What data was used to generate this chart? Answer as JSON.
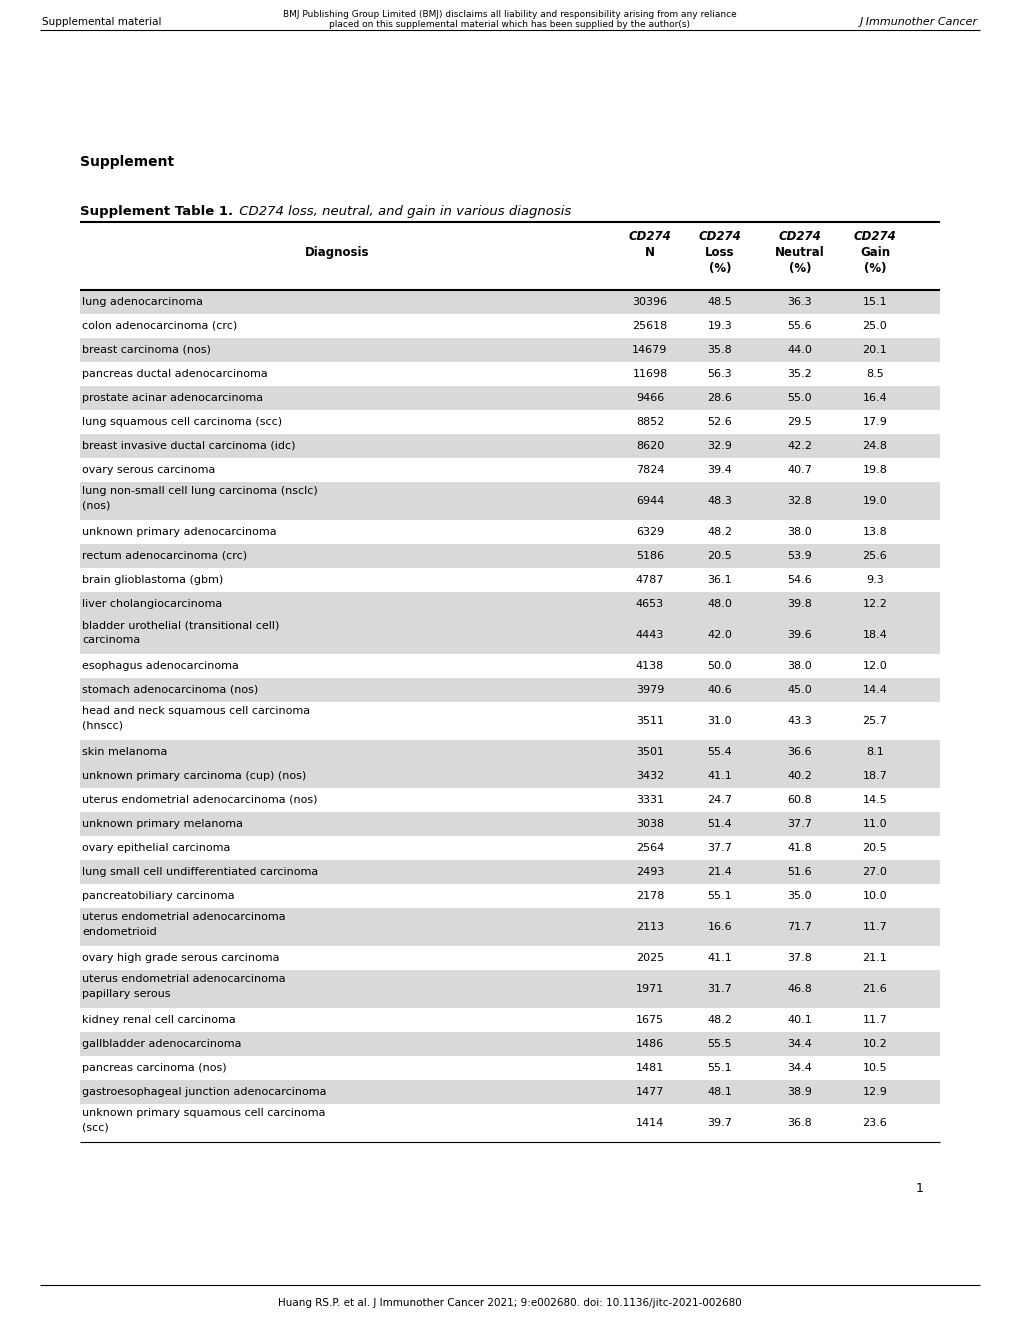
{
  "header_text": "Supplement",
  "table_title_bold": "Supplement Table 1.",
  "table_title_italic": " CD274 loss, neutral, and gain in various diagnosis",
  "rows": [
    [
      "lung adenocarcinoma",
      "30396",
      "48.5",
      "36.3",
      "15.1"
    ],
    [
      "colon adenocarcinoma (crc)",
      "25618",
      "19.3",
      "55.6",
      "25.0"
    ],
    [
      "breast carcinoma (nos)",
      "14679",
      "35.8",
      "44.0",
      "20.1"
    ],
    [
      "pancreas ductal adenocarcinoma",
      "11698",
      "56.3",
      "35.2",
      "8.5"
    ],
    [
      "prostate acinar adenocarcinoma",
      "9466",
      "28.6",
      "55.0",
      "16.4"
    ],
    [
      "lung squamous cell carcinoma (scc)",
      "8852",
      "52.6",
      "29.5",
      "17.9"
    ],
    [
      "breast invasive ductal carcinoma (idc)",
      "8620",
      "32.9",
      "42.2",
      "24.8"
    ],
    [
      "ovary serous carcinoma",
      "7824",
      "39.4",
      "40.7",
      "19.8"
    ],
    [
      "lung non-small cell lung carcinoma (nsclc)\n(nos)",
      "6944",
      "48.3",
      "32.8",
      "19.0"
    ],
    [
      "unknown primary adenocarcinoma",
      "6329",
      "48.2",
      "38.0",
      "13.8"
    ],
    [
      "rectum adenocarcinoma (crc)",
      "5186",
      "20.5",
      "53.9",
      "25.6"
    ],
    [
      "brain glioblastoma (gbm)",
      "4787",
      "36.1",
      "54.6",
      "9.3"
    ],
    [
      "liver cholangiocarcinoma",
      "4653",
      "48.0",
      "39.8",
      "12.2"
    ],
    [
      "bladder urothelial (transitional cell)\ncarcinoma",
      "4443",
      "42.0",
      "39.6",
      "18.4"
    ],
    [
      "esophagus adenocarcinoma",
      "4138",
      "50.0",
      "38.0",
      "12.0"
    ],
    [
      "stomach adenocarcinoma (nos)",
      "3979",
      "40.6",
      "45.0",
      "14.4"
    ],
    [
      "head and neck squamous cell carcinoma\n(hnscc)",
      "3511",
      "31.0",
      "43.3",
      "25.7"
    ],
    [
      "skin melanoma",
      "3501",
      "55.4",
      "36.6",
      "8.1"
    ],
    [
      "unknown primary carcinoma (cup) (nos)",
      "3432",
      "41.1",
      "40.2",
      "18.7"
    ],
    [
      "uterus endometrial adenocarcinoma (nos)",
      "3331",
      "24.7",
      "60.8",
      "14.5"
    ],
    [
      "unknown primary melanoma",
      "3038",
      "51.4",
      "37.7",
      "11.0"
    ],
    [
      "ovary epithelial carcinoma",
      "2564",
      "37.7",
      "41.8",
      "20.5"
    ],
    [
      "lung small cell undifferentiated carcinoma",
      "2493",
      "21.4",
      "51.6",
      "27.0"
    ],
    [
      "pancreatobiliary carcinoma",
      "2178",
      "55.1",
      "35.0",
      "10.0"
    ],
    [
      "uterus endometrial adenocarcinoma\nendometrioid",
      "2113",
      "16.6",
      "71.7",
      "11.7"
    ],
    [
      "ovary high grade serous carcinoma",
      "2025",
      "41.1",
      "37.8",
      "21.1"
    ],
    [
      "uterus endometrial adenocarcinoma\npapillary serous",
      "1971",
      "31.7",
      "46.8",
      "21.6"
    ],
    [
      "kidney renal cell carcinoma",
      "1675",
      "48.2",
      "40.1",
      "11.7"
    ],
    [
      "gallbladder adenocarcinoma",
      "1486",
      "55.5",
      "34.4",
      "10.2"
    ],
    [
      "pancreas carcinoma (nos)",
      "1481",
      "55.1",
      "34.4",
      "10.5"
    ],
    [
      "gastroesophageal junction adenocarcinoma",
      "1477",
      "48.1",
      "38.9",
      "12.9"
    ],
    [
      "unknown primary squamous cell carcinoma\n(scc)",
      "1414",
      "39.7",
      "36.8",
      "23.6"
    ]
  ],
  "shaded_rows": [
    0,
    2,
    4,
    6,
    8,
    10,
    12,
    13,
    15,
    17,
    18,
    20,
    22,
    24,
    26,
    28,
    30
  ],
  "shade_color": "#d9d9d9",
  "bg_color": "#ffffff",
  "header_left": "Supplemental material",
  "header_center_line1": "BMJ Publishing Group Limited (BMJ) disclaims all liability and responsibility arising from any reliance",
  "header_center_line2": "placed on this supplemental material which has been supplied by the author(s)",
  "header_right": "J Immunother Cancer",
  "bottom_citation": "Huang RS.P. et al. J Immunother Cancer 2021; 9:e002680. doi: 10.1136/jitc-2021-002680",
  "page_number": "1"
}
